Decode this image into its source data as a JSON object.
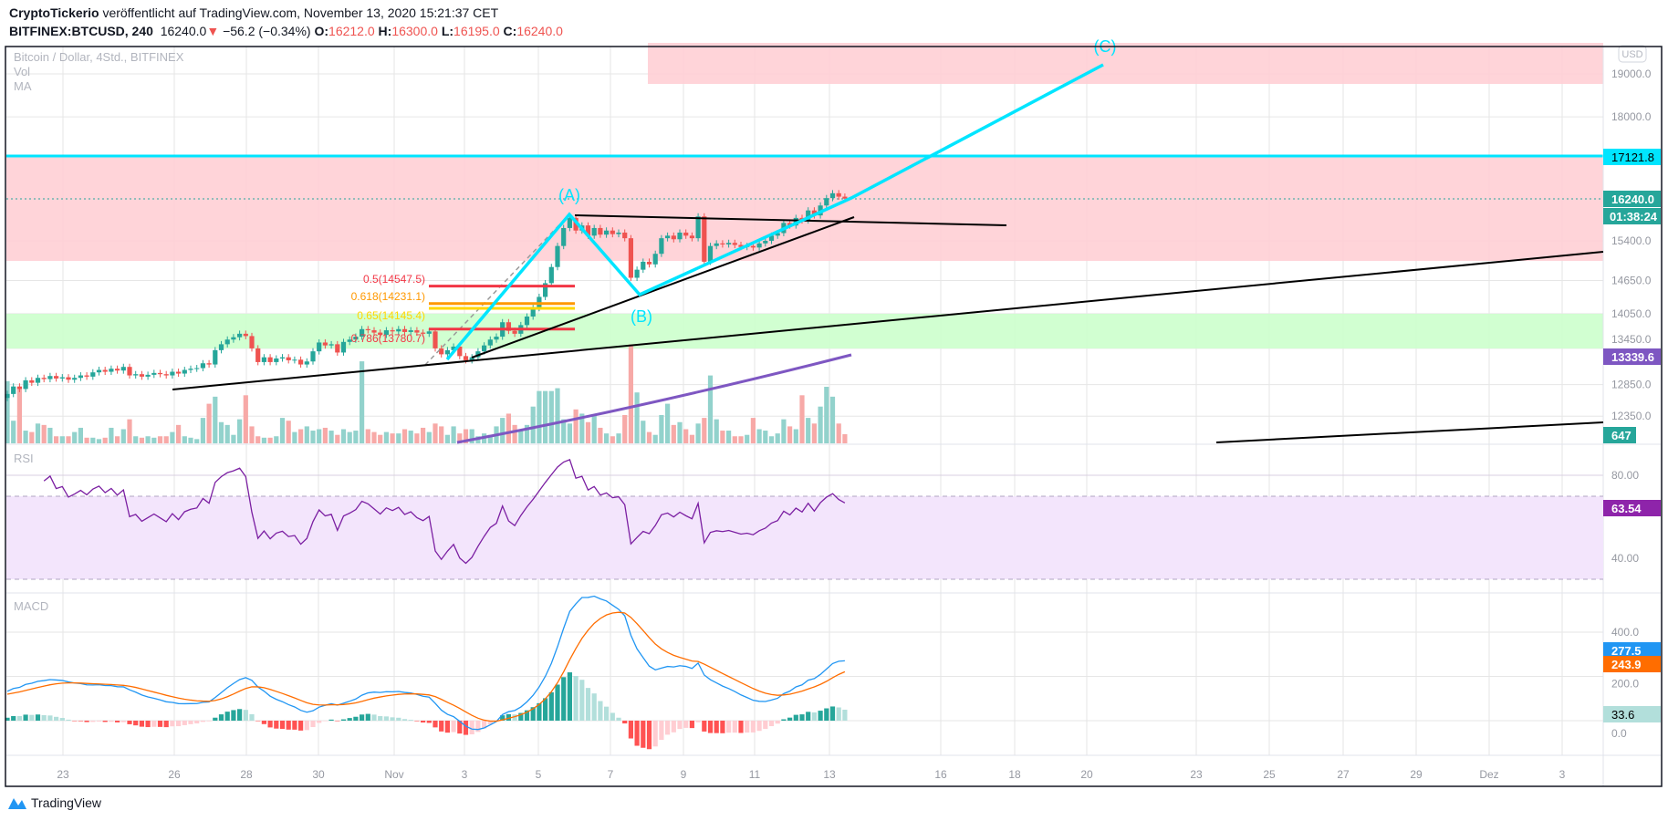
{
  "header": {
    "author": "CryptoTickerio",
    "published": "veröffentlicht auf TradingView.com, November 13, 2020 15:21:37 CET",
    "symbol": "BITFINEX:BTCUSD, 240",
    "last": "16240.0",
    "change": "−56.2 (−0.34%)",
    "o_label": "O:",
    "o": "16212.0",
    "h_label": "H:",
    "h": "16300.0",
    "l_label": "L:",
    "l": "16195.0",
    "c_label": "C:",
    "c": "16240.0"
  },
  "legend": {
    "title": "Bitcoin / Dollar, 4Std., BITFINEX",
    "vol": "Vol",
    "ma": "MA",
    "rsi": "RSI",
    "macd": "MACD"
  },
  "chart_data": {
    "type": "candlestick",
    "currency": "USD",
    "scale": "log",
    "x_ticks": [
      "23",
      "26",
      "28",
      "30",
      "Nov",
      "3",
      "5",
      "7",
      "9",
      "11",
      "13",
      "16",
      "18",
      "20",
      "23",
      "25",
      "27",
      "29",
      "Dez",
      "3"
    ],
    "price_ticks": [
      "19000.0",
      "18000.0",
      "15400.0",
      "14650.0",
      "14050.0",
      "13450.0",
      "12850.0",
      "12350.0"
    ],
    "rsi_ticks": [
      "80.00",
      "40.00"
    ],
    "macd_ticks": [
      "400.0",
      "200.0",
      "0.0"
    ],
    "tags": {
      "resistance": "17121.8",
      "last_price": "16240.0",
      "countdown": "01:38:24",
      "ma": "13339.6",
      "volume": "647",
      "rsi": "63.54",
      "macd": "277.5",
      "signal": "243.9",
      "hist": "33.6"
    },
    "colors": {
      "up": "#26a69a",
      "down": "#ef5350",
      "cyan": "#00e5ff",
      "ma": "#7e57c2",
      "rsi": "#7b1fa2",
      "macd": "#2196f3",
      "signal": "#ff6d00"
    },
    "closes": [
      12700,
      12820,
      12780,
      12920,
      12880,
      12960,
      12940,
      12990,
      12950,
      12970,
      12930,
      12960,
      13000,
      12980,
      13050,
      13090,
      13060,
      13110,
      13080,
      13140,
      13000,
      13020,
      12980,
      13010,
      13040,
      13020,
      13000,
      13060,
      13030,
      13090,
      13110,
      13120,
      13200,
      13180,
      13420,
      13520,
      13600,
      13640,
      13700,
      13660,
      13450,
      13220,
      13300,
      13220,
      13280,
      13300,
      13250,
      13260,
      13180,
      13230,
      13400,
      13550,
      13500,
      13520,
      13380,
      13560,
      13600,
      13650,
      13780,
      13760,
      13720,
      13680,
      13760,
      13740,
      13780,
      13730,
      13760,
      13720,
      13700,
      13740,
      13450,
      13350,
      13420,
      13480,
      13320,
      13250,
      13300,
      13400,
      13500,
      13600,
      13650,
      13900,
      13750,
      13700,
      13850,
      14000,
      14150,
      14350,
      14600,
      14900,
      15300,
      15650,
      15850,
      15600,
      15700,
      15500,
      15650,
      15520,
      15600,
      15530,
      15560,
      15450,
      14700,
      14850,
      15000,
      14950,
      15150,
      15450,
      15500,
      15430,
      15560,
      15500,
      15450,
      15880,
      15000,
      15300,
      15350,
      15330,
      15360,
      15320,
      15280,
      15300,
      15270,
      15350,
      15400,
      15500,
      15550,
      15750,
      15700,
      15850,
      15800,
      16000,
      15900,
      16100,
      16250,
      16350,
      16280,
      16240
    ],
    "volumes": [
      4400,
      1600,
      3900,
      900,
      800,
      1400,
      1300,
      1100,
      500,
      500,
      500,
      800,
      1100,
      400,
      400,
      300,
      400,
      1100,
      500,
      1000,
      1700,
      500,
      400,
      500,
      400,
      500,
      500,
      800,
      1300,
      500,
      400,
      300,
      1800,
      2800,
      3300,
      1500,
      1300,
      600,
      1700,
      3400,
      1200,
      500,
      400,
      400,
      500,
      1800,
      1600,
      800,
      1000,
      1200,
      900,
      1000,
      1100,
      900,
      600,
      1000,
      800,
      900,
      5800,
      1000,
      800,
      600,
      800,
      700,
      700,
      1000,
      900,
      700,
      1100,
      800,
      1400,
      1200,
      600,
      1200,
      700,
      1000,
      1000,
      500,
      700,
      600,
      1200,
      1800,
      2100,
      1300,
      900,
      1300,
      2600,
      3700,
      3700,
      3700,
      3900,
      1700,
      1400,
      2400,
      2100,
      1500,
      2000,
      1100,
      700,
      500,
      700,
      2000,
      7000,
      3600,
      1600,
      800,
      600,
      2000,
      2800,
      1300,
      1500,
      1000,
      600,
      1400,
      1800,
      4800,
      1700,
      900,
      900,
      500,
      500,
      600,
      1800,
      1000,
      900,
      500,
      700,
      1700,
      1200,
      1000,
      3400,
      1800,
      1400,
      2600,
      4000,
      3300,
      1400,
      647
    ],
    "zones": [
      {
        "type": "resistance",
        "from": 18700,
        "to": 19700
      },
      {
        "type": "resistance",
        "from": 15000,
        "to": 17121.8
      },
      {
        "type": "support",
        "from": 13450,
        "to": 14050
      }
    ],
    "fib_levels": [
      {
        "label": "0.5(14547.5)",
        "value": 14547.5,
        "color": "#f23645"
      },
      {
        "label": "0.618(14231.1)",
        "value": 14231.1,
        "color": "#ff9800"
      },
      {
        "label": "0.65(14145.4)",
        "value": 14145.4,
        "color": "#ffd600"
      },
      {
        "label": "0.786(13780.7)",
        "value": 13780.7,
        "color": "#f23645"
      }
    ],
    "wave_labels": {
      "a": "(A)",
      "b": "(B)",
      "c": "(C)"
    }
  },
  "footer": {
    "brand": "TradingView"
  }
}
